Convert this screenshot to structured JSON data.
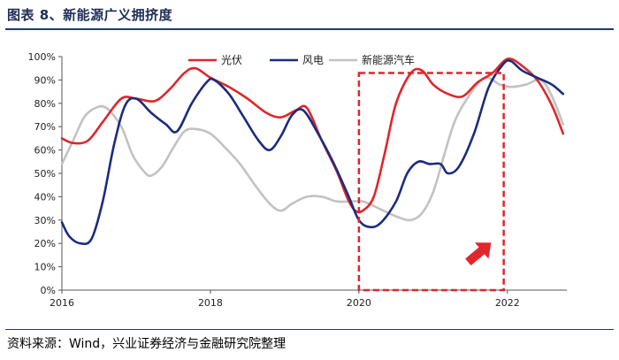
{
  "header": {
    "title": "图表 8、新能源广义拥挤度"
  },
  "footer": {
    "source": "资料来源：Wind，兴业证券经济与金融研究院整理"
  },
  "colors": {
    "pv": "#e0262b",
    "wind": "#1a2c7e",
    "nev": "#c2c2c2",
    "highlight": "#e0262b",
    "frame_rule": "#1f3a70"
  },
  "chart_data": {
    "type": "line",
    "title": "",
    "xlabel": "",
    "ylabel": "",
    "xlim": [
      2016,
      2022.8
    ],
    "ylim": [
      0,
      100
    ],
    "x_ticks": [
      2016,
      2018,
      2020,
      2022
    ],
    "x_tick_labels": [
      "2016",
      "2018",
      "2020",
      "2022"
    ],
    "y_ticks": [
      0,
      10,
      20,
      30,
      40,
      50,
      60,
      70,
      80,
      90,
      100
    ],
    "y_tick_labels": [
      "0%",
      "10%",
      "20%",
      "30%",
      "40%",
      "50%",
      "60%",
      "70%",
      "80%",
      "90%",
      "100%"
    ],
    "grid": false,
    "legend_position": "top-center",
    "series": [
      {
        "name": "光伏",
        "color": "#e0262b",
        "points": [
          [
            2016.0,
            65
          ],
          [
            2016.15,
            63
          ],
          [
            2016.35,
            64
          ],
          [
            2016.55,
            72
          ],
          [
            2016.8,
            82
          ],
          [
            2017.0,
            82
          ],
          [
            2017.25,
            81
          ],
          [
            2017.45,
            86
          ],
          [
            2017.65,
            93
          ],
          [
            2017.8,
            95
          ],
          [
            2018.0,
            91
          ],
          [
            2018.25,
            87
          ],
          [
            2018.5,
            82
          ],
          [
            2018.75,
            76
          ],
          [
            2018.95,
            74
          ],
          [
            2019.15,
            77
          ],
          [
            2019.3,
            78
          ],
          [
            2019.5,
            64
          ],
          [
            2019.7,
            51
          ],
          [
            2019.85,
            39
          ],
          [
            2019.95,
            34
          ],
          [
            2020.05,
            34
          ],
          [
            2020.2,
            40
          ],
          [
            2020.35,
            59
          ],
          [
            2020.5,
            80
          ],
          [
            2020.7,
            93
          ],
          [
            2020.85,
            94
          ],
          [
            2021.0,
            88
          ],
          [
            2021.2,
            84
          ],
          [
            2021.4,
            83
          ],
          [
            2021.6,
            89
          ],
          [
            2021.8,
            93
          ],
          [
            2021.95,
            98
          ],
          [
            2022.05,
            99
          ],
          [
            2022.2,
            96
          ],
          [
            2022.4,
            90
          ],
          [
            2022.6,
            79
          ],
          [
            2022.75,
            67
          ]
        ]
      },
      {
        "name": "风电",
        "color": "#1a2c7e",
        "points": [
          [
            2016.0,
            29
          ],
          [
            2016.1,
            23
          ],
          [
            2016.25,
            20
          ],
          [
            2016.4,
            22
          ],
          [
            2016.55,
            38
          ],
          [
            2016.7,
            62
          ],
          [
            2016.85,
            79
          ],
          [
            2017.0,
            82
          ],
          [
            2017.2,
            76
          ],
          [
            2017.4,
            71
          ],
          [
            2017.55,
            68
          ],
          [
            2017.75,
            80
          ],
          [
            2017.95,
            89
          ],
          [
            2018.05,
            90
          ],
          [
            2018.25,
            84
          ],
          [
            2018.45,
            74
          ],
          [
            2018.65,
            64
          ],
          [
            2018.8,
            60
          ],
          [
            2018.95,
            66
          ],
          [
            2019.1,
            75
          ],
          [
            2019.25,
            77
          ],
          [
            2019.45,
            67
          ],
          [
            2019.65,
            55
          ],
          [
            2019.85,
            41
          ],
          [
            2020.0,
            30
          ],
          [
            2020.15,
            27
          ],
          [
            2020.3,
            29
          ],
          [
            2020.5,
            38
          ],
          [
            2020.65,
            50
          ],
          [
            2020.8,
            55
          ],
          [
            2020.95,
            54
          ],
          [
            2021.1,
            54
          ],
          [
            2021.2,
            50
          ],
          [
            2021.35,
            53
          ],
          [
            2021.55,
            67
          ],
          [
            2021.75,
            87
          ],
          [
            2021.95,
            97
          ],
          [
            2022.05,
            98
          ],
          [
            2022.2,
            94
          ],
          [
            2022.4,
            91
          ],
          [
            2022.6,
            88
          ],
          [
            2022.75,
            84
          ]
        ]
      },
      {
        "name": "新能源汽车",
        "color": "#c2c2c2",
        "points": [
          [
            2016.0,
            54
          ],
          [
            2016.15,
            64
          ],
          [
            2016.3,
            74
          ],
          [
            2016.45,
            78
          ],
          [
            2016.6,
            78
          ],
          [
            2016.8,
            70
          ],
          [
            2016.95,
            58
          ],
          [
            2017.1,
            51
          ],
          [
            2017.2,
            49
          ],
          [
            2017.35,
            53
          ],
          [
            2017.5,
            61
          ],
          [
            2017.65,
            68
          ],
          [
            2017.8,
            69
          ],
          [
            2018.0,
            67
          ],
          [
            2018.2,
            61
          ],
          [
            2018.4,
            54
          ],
          [
            2018.6,
            45
          ],
          [
            2018.8,
            37
          ],
          [
            2018.95,
            34
          ],
          [
            2019.1,
            37
          ],
          [
            2019.3,
            40
          ],
          [
            2019.5,
            40
          ],
          [
            2019.7,
            38
          ],
          [
            2019.9,
            38
          ],
          [
            2020.05,
            38
          ],
          [
            2020.2,
            36
          ],
          [
            2020.4,
            33
          ],
          [
            2020.55,
            31
          ],
          [
            2020.7,
            30
          ],
          [
            2020.85,
            33
          ],
          [
            2021.0,
            42
          ],
          [
            2021.15,
            58
          ],
          [
            2021.3,
            73
          ],
          [
            2021.5,
            84
          ],
          [
            2021.7,
            91
          ],
          [
            2021.9,
            88
          ],
          [
            2022.05,
            87
          ],
          [
            2022.25,
            88
          ],
          [
            2022.45,
            90
          ],
          [
            2022.6,
            83
          ],
          [
            2022.75,
            71
          ]
        ]
      }
    ],
    "annotations": [
      {
        "type": "dashed-rectangle",
        "x_range": [
          2020.0,
          2021.95
        ],
        "y_range": [
          0,
          93
        ],
        "color": "#e0262b"
      },
      {
        "type": "arrow",
        "direction": "up-right",
        "color": "#e0262b"
      }
    ]
  }
}
